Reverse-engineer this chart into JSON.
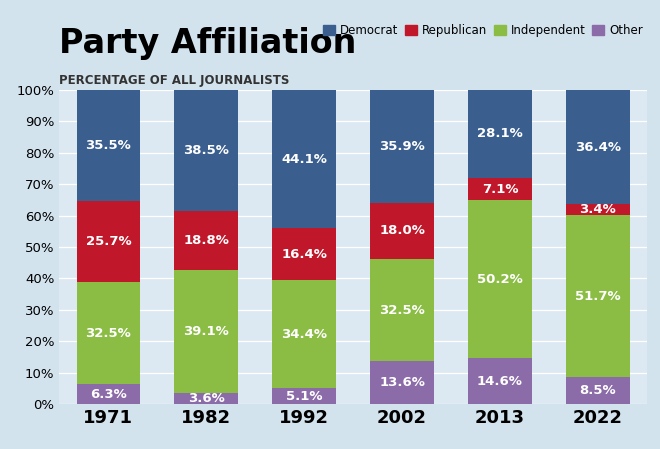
{
  "title": "Party Affiliation",
  "subtitle": "PERCENTAGE OF ALL JOURNALISTS",
  "years": [
    "1971",
    "1982",
    "1992",
    "2002",
    "2013",
    "2022"
  ],
  "colors": {
    "Democrat": "#3A5F8F",
    "Republican": "#C0182A",
    "Independent": "#8BBD45",
    "Other": "#8B6BA8"
  },
  "data": {
    "Democrat": [
      35.5,
      38.5,
      44.1,
      35.9,
      28.1,
      36.4
    ],
    "Republican": [
      25.7,
      18.8,
      16.4,
      18.0,
      7.1,
      3.4
    ],
    "Independent": [
      32.5,
      39.1,
      34.4,
      32.5,
      50.2,
      51.7
    ],
    "Other": [
      6.3,
      3.6,
      5.1,
      13.6,
      14.6,
      8.5
    ]
  },
  "legend_labels": [
    "Democrat",
    "Republican",
    "Independent",
    "Other"
  ],
  "legend_colors": [
    "#3A5F8F",
    "#C0182A",
    "#8BBD45",
    "#8B6BA8"
  ],
  "background_color": "#D3E3EE",
  "plot_bg_color": "#DCE9F3",
  "ylabel_ticks": [
    "0%",
    "10%",
    "20%",
    "30%",
    "40%",
    "50%",
    "60%",
    "70%",
    "80%",
    "90%",
    "100%"
  ],
  "title_fontsize": 24,
  "subtitle_fontsize": 8.5,
  "tick_fontsize": 9.5,
  "label_fontsize": 9.5,
  "bar_width": 0.65
}
